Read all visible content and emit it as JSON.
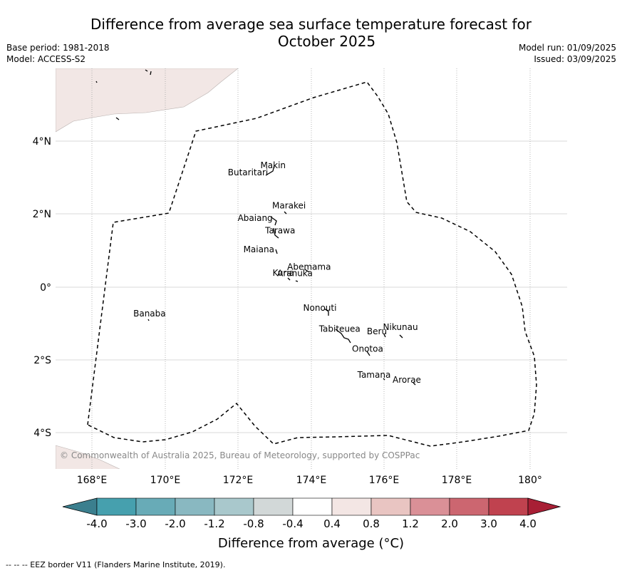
{
  "title_line1": "Difference from average sea surface temperature forecast for",
  "title_line2": "October 2025",
  "base_period": "Base period: 1981-2018",
  "model": "Model: ACCESS-S2",
  "model_run": "Model run: 01/09/2025",
  "issued": "Issued: 03/09/2025",
  "copyright": "© Commonwealth of Australia 2025, Bureau of Meteorology, supported by COSPPac",
  "colorbar": {
    "label": "Difference from average (°C)",
    "ticks": [
      "-4.0",
      "-3.0",
      "-2.0",
      "-1.2",
      "-0.8",
      "-0.4",
      "0.4",
      "0.8",
      "1.2",
      "2.0",
      "3.0",
      "4.0"
    ],
    "colors": [
      "#3b7f8e",
      "#46a0ae",
      "#68abb7",
      "#89b8c1",
      "#a9c8cc",
      "#d2d8d8",
      "#ffffff",
      "#f3e6e4",
      "#e9c5c2",
      "#da9097",
      "#cc6670",
      "#c0424f",
      "#a81f35"
    ]
  },
  "axes": {
    "x_ticks": [
      "168°E",
      "170°E",
      "172°E",
      "174°E",
      "176°E",
      "178°E",
      "180°"
    ],
    "y_ticks": [
      "4°N",
      "2°N",
      "0°",
      "2°S",
      "4°S"
    ]
  },
  "islands": [
    {
      "name": "Makin",
      "lon": 173.0,
      "lat": 3.1
    },
    {
      "name": "Butaritari",
      "lon": 172.8,
      "lat": 2.95
    },
    {
      "name": "Marakei",
      "lon": 173.3,
      "lat": 2.0
    },
    {
      "name": "Abaiang",
      "lon": 172.9,
      "lat": 1.8
    },
    {
      "name": "Tarawa",
      "lon": 173.0,
      "lat": 1.4
    },
    {
      "name": "Maiana",
      "lon": 173.0,
      "lat": 0.9
    },
    {
      "name": "Abemama",
      "lon": 173.85,
      "lat": 0.4
    },
    {
      "name": "Kuria",
      "lon": 173.4,
      "lat": 0.2
    },
    {
      "name": "Aranuka",
      "lon": 173.6,
      "lat": 0.15
    },
    {
      "name": "Banaba",
      "lon": 169.5,
      "lat": -0.9
    },
    {
      "name": "Nonouti",
      "lon": 174.4,
      "lat": -0.7
    },
    {
      "name": "Tabiteuea",
      "lon": 175.0,
      "lat": -1.3
    },
    {
      "name": "Beru",
      "lon": 176.0,
      "lat": -1.35
    },
    {
      "name": "Nikunau",
      "lon": 176.45,
      "lat": -1.35
    },
    {
      "name": "Onotoa",
      "lon": 175.55,
      "lat": -1.8
    },
    {
      "name": "Tamana",
      "lon": 175.98,
      "lat": -2.5
    },
    {
      "name": "Arorae",
      "lon": 176.8,
      "lat": -2.65
    }
  ],
  "legend_note": "--  --  -- EEZ border V11 (Flanders Marine Institute, 2019)."
}
